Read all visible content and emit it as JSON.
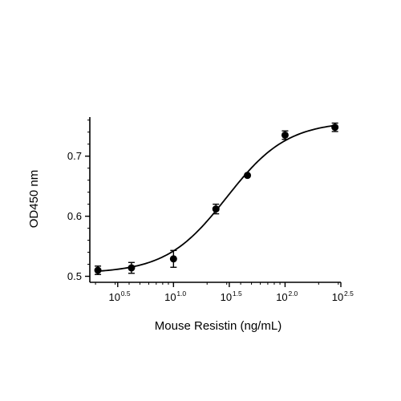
{
  "chart_data": {
    "type": "scatter",
    "title": "",
    "xlabel": "Mouse Resistin (ng/mL)",
    "ylabel": "OD450 nm",
    "x_scale": "log10",
    "xlim": [
      1.778,
      316.2
    ],
    "ylim": [
      0.49,
      0.765
    ],
    "x_ticks": [
      {
        "base": "10",
        "exp": "0.5",
        "value": 3.162
      },
      {
        "base": "10",
        "exp": "1.0",
        "value": 10
      },
      {
        "base": "10",
        "exp": "1.5",
        "value": 31.62
      },
      {
        "base": "10",
        "exp": "2.0",
        "value": 100
      },
      {
        "base": "10",
        "exp": "2.5",
        "value": 316.2
      }
    ],
    "y_ticks": [
      {
        "label": "0.5",
        "value": 0.5
      },
      {
        "label": "0.6",
        "value": 0.6
      },
      {
        "label": "0.7",
        "value": 0.7
      }
    ],
    "points": [
      {
        "x": 2.1,
        "y": 0.51,
        "err": 0.007
      },
      {
        "x": 4.2,
        "y": 0.514,
        "err": 0.009
      },
      {
        "x": 10.0,
        "y": 0.529,
        "err": 0.014
      },
      {
        "x": 24.0,
        "y": 0.612,
        "err": 0.008
      },
      {
        "x": 46.0,
        "y": 0.668,
        "err": 0.0
      },
      {
        "x": 100.0,
        "y": 0.735,
        "err": 0.007
      },
      {
        "x": 280.0,
        "y": 0.748,
        "err": 0.007
      }
    ],
    "fit": {
      "type": "4PL",
      "bottom": 0.505,
      "top": 0.758,
      "ec50": 30.0,
      "hill": 1.6
    },
    "grid": false,
    "legend": "none"
  }
}
